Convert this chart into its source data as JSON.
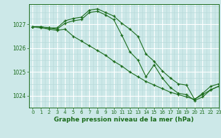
{
  "title": "Graphe pression niveau de la mer (hPa)",
  "bg_color": "#cce8e8",
  "line_color": "#1a6b1a",
  "grid_major_color": "#ffffff",
  "grid_minor_color": "#b8dada",
  "xlim": [
    -0.5,
    23
  ],
  "ylim": [
    1023.5,
    1027.85
  ],
  "yticks": [
    1024,
    1025,
    1026,
    1027
  ],
  "xticks": [
    0,
    1,
    2,
    3,
    4,
    5,
    6,
    7,
    8,
    9,
    10,
    11,
    12,
    13,
    14,
    15,
    16,
    17,
    18,
    19,
    20,
    21,
    22,
    23
  ],
  "series": [
    {
      "x": [
        0,
        1,
        2,
        3,
        4,
        5,
        6,
        7,
        8,
        9,
        10,
        11,
        12,
        13,
        14,
        15,
        16,
        17,
        18,
        19,
        20,
        21,
        22,
        23
      ],
      "y": [
        1026.9,
        1026.9,
        1026.85,
        1026.85,
        1027.15,
        1027.25,
        1027.3,
        1027.6,
        1027.65,
        1027.5,
        1027.35,
        1027.05,
        1026.8,
        1026.5,
        1025.75,
        1025.45,
        1025.05,
        1024.75,
        1024.5,
        1024.45,
        1023.85,
        1024.1,
        1024.4,
        1024.5
      ]
    },
    {
      "x": [
        0,
        1,
        2,
        3,
        4,
        5,
        6,
        7,
        8,
        9,
        10,
        11,
        12,
        13,
        14,
        15,
        16,
        17,
        18,
        19,
        20,
        21,
        22,
        23
      ],
      "y": [
        1026.9,
        1026.9,
        1026.85,
        1026.8,
        1027.05,
        1027.15,
        1027.2,
        1027.5,
        1027.55,
        1027.4,
        1027.2,
        1026.55,
        1025.85,
        1025.5,
        1024.8,
        1025.3,
        1024.75,
        1024.35,
        1024.1,
        1024.05,
        1023.8,
        1023.95,
        1024.25,
        1024.4
      ]
    },
    {
      "x": [
        0,
        1,
        2,
        3,
        4,
        5,
        6,
        7,
        8,
        9,
        10,
        11,
        12,
        13,
        14,
        15,
        16,
        17,
        18,
        19,
        20,
        21,
        22,
        23
      ],
      "y": [
        1026.9,
        1026.85,
        1026.8,
        1026.75,
        1026.8,
        1026.5,
        1026.3,
        1026.1,
        1025.9,
        1025.7,
        1025.45,
        1025.25,
        1025.0,
        1024.8,
        1024.6,
        1024.45,
        1024.3,
        1024.15,
        1024.05,
        1023.95,
        1023.85,
        1024.05,
        1024.25,
        1024.4
      ]
    }
  ]
}
